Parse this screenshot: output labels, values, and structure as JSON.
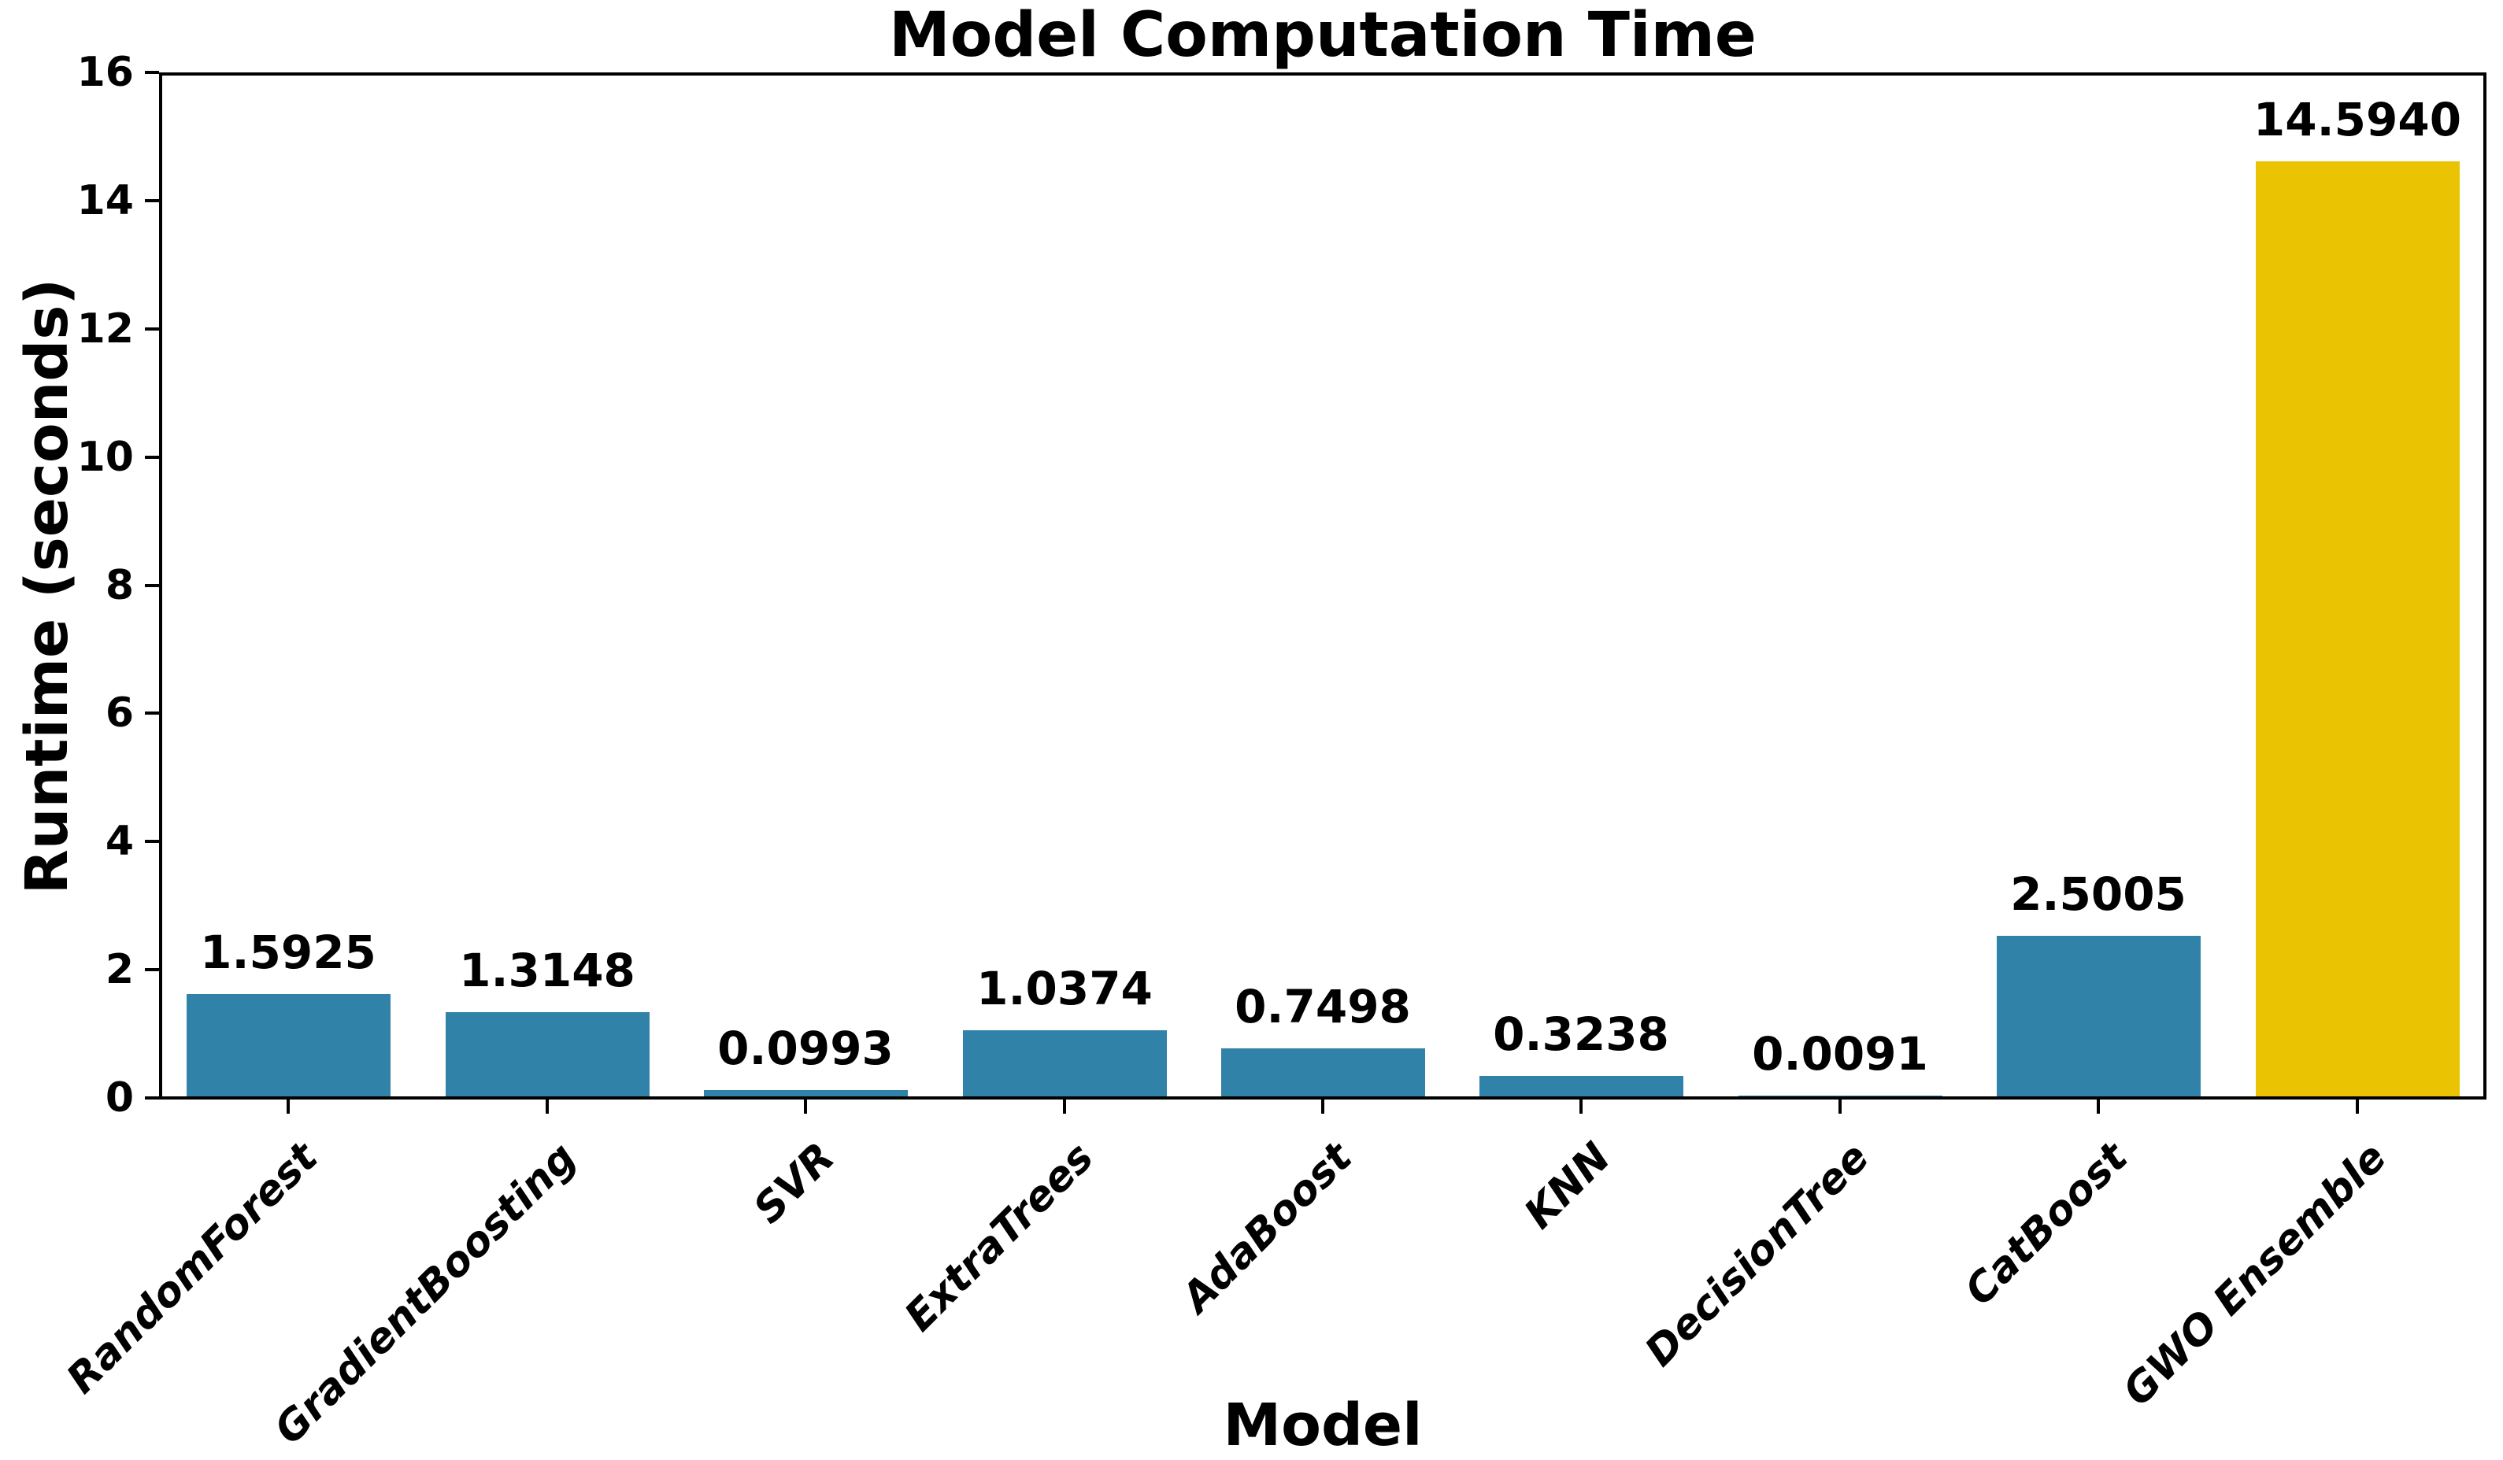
{
  "figure": {
    "title": "Model Computation Time"
  },
  "chart_data": {
    "type": "bar",
    "title": "Model Computation Time",
    "xlabel": "Model",
    "ylabel": "Runtime (seconds)",
    "categories": [
      "RandomForest",
      "GradientBoosting",
      "SVR",
      "ExtraTrees",
      "AdaBoost",
      "KNN",
      "DecisionTree",
      "CatBoost",
      "GWO Ensemble"
    ],
    "values": [
      1.5925,
      1.3148,
      0.0993,
      1.0374,
      0.7498,
      0.3238,
      0.0091,
      2.5005,
      14.594
    ],
    "value_labels": [
      "1.5925",
      "1.3148",
      "0.0993",
      "1.0374",
      "0.7498",
      "0.3238",
      "0.0091",
      "2.5005",
      "14.5940"
    ],
    "ylim": [
      0,
      16
    ],
    "yticks": [
      0,
      2,
      4,
      6,
      8,
      10,
      12,
      14,
      16
    ],
    "grid": false,
    "legend": "none",
    "colors": {
      "bar_default": "#3182A8",
      "bar_highlight": "#EAC402",
      "highlight_category": "GWO Ensemble",
      "text": "#000000",
      "background": "#FFFFFF"
    }
  }
}
